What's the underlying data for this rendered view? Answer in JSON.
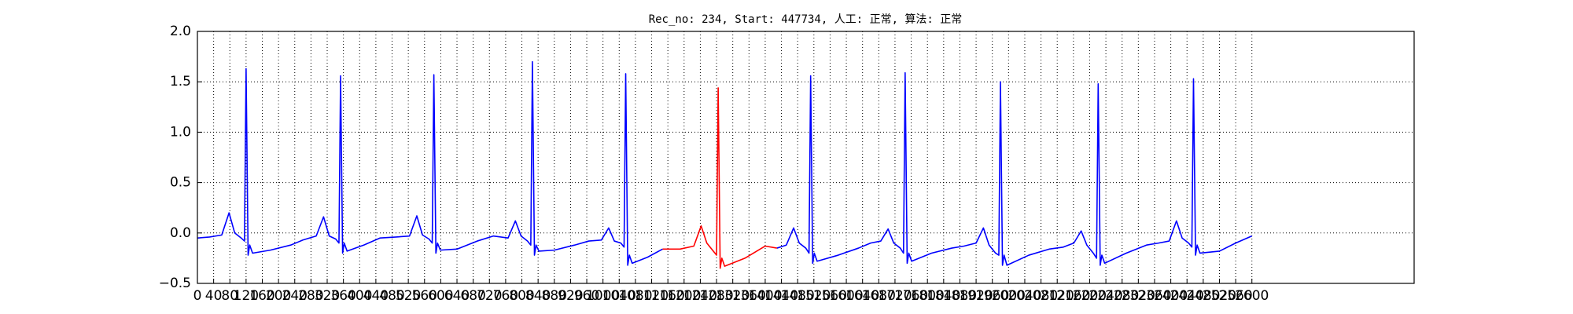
{
  "chart_data": {
    "type": "line",
    "title": "Rec_no: 234, Start: 447734, 人工: 正常, 算法: 正常",
    "xlim": [
      0,
      3000
    ],
    "ylim": [
      -0.5,
      2
    ],
    "grid": true,
    "xticks": [
      0,
      40,
      80,
      120,
      160,
      200,
      240,
      280,
      320,
      360,
      400,
      440,
      480,
      520,
      560,
      600,
      640,
      680,
      720,
      760,
      800,
      840,
      880,
      920,
      960,
      1000,
      1040,
      1080,
      1120,
      1160,
      1200,
      1240,
      1280,
      1320,
      1360,
      1400,
      1440,
      1480,
      1520,
      1560,
      1600,
      1640,
      1680,
      1720,
      1760,
      1800,
      1840,
      1880,
      1920,
      1960,
      2000,
      2040,
      2080,
      2120,
      2160,
      2200,
      2240,
      2280,
      2320,
      2360,
      2400,
      2440,
      2480,
      2520,
      2560,
      2600
    ],
    "yticks": [
      {
        "value": -0.5,
        "label": "−0.5"
      },
      {
        "value": 0,
        "label": "0.0"
      },
      0.5,
      {
        "value": 1,
        "label": "1.0"
      },
      1.5,
      {
        "value": 2,
        "label": "2.0"
      }
    ],
    "series": [
      {
        "color": "#0000ff",
        "x": [
          0,
          30,
          60,
          78,
          92,
          108,
          116,
          120,
          125,
          129,
          136,
          180,
          230,
          260,
          293,
          311,
          325,
          341,
          349,
          353,
          358,
          362,
          369,
          410,
          450,
          490,
          523,
          541,
          555,
          571,
          579,
          583,
          588,
          592,
          599,
          640,
          690,
          730,
          766,
          784,
          798,
          814,
          822,
          826,
          831,
          835,
          842,
          880,
          930,
          965,
          996,
          1014,
          1028,
          1044,
          1052,
          1056,
          1061,
          1065,
          1072,
          1110,
          1147
        ],
        "values": [
          -0.05,
          -0.04,
          -0.02,
          0.2,
          0,
          -0.05,
          -0.08,
          1.63,
          -0.22,
          -0.12,
          -0.2,
          -0.17,
          -0.12,
          -0.07,
          -0.03,
          0.16,
          -0.03,
          -0.06,
          -0.1,
          1.56,
          -0.2,
          -0.1,
          -0.18,
          -0.12,
          -0.05,
          -0.04,
          -0.03,
          0.17,
          -0.02,
          -0.06,
          -0.1,
          1.57,
          -0.2,
          -0.1,
          -0.17,
          -0.16,
          -0.08,
          -0.03,
          -0.05,
          0.12,
          -0.03,
          -0.08,
          -0.12,
          1.7,
          -0.22,
          -0.12,
          -0.18,
          -0.17,
          -0.12,
          -0.08,
          -0.07,
          0.05,
          -0.08,
          -0.1,
          -0.14,
          1.58,
          -0.32,
          -0.22,
          -0.3,
          -0.24,
          -0.16
        ]
      },
      {
        "color": "#ff0000",
        "x": [
          1147,
          1190,
          1224,
          1242,
          1256,
          1272,
          1280,
          1284,
          1289,
          1293,
          1300,
          1350,
          1400,
          1429
        ],
        "values": [
          -0.16,
          -0.16,
          -0.13,
          0.07,
          -0.1,
          -0.18,
          -0.22,
          1.44,
          -0.35,
          -0.25,
          -0.33,
          -0.25,
          -0.13,
          -0.15
        ]
      },
      {
        "color": "#0000ff",
        "x": [
          1429,
          1452,
          1470,
          1484,
          1500,
          1508,
          1512,
          1517,
          1521,
          1528,
          1580,
          1630,
          1660,
          1685,
          1703,
          1717,
          1733,
          1741,
          1745,
          1750,
          1754,
          1761,
          1810,
          1860,
          1890,
          1920,
          1938,
          1952,
          1968,
          1976,
          1980,
          1985,
          1989,
          1996,
          2050,
          2100,
          2135,
          2161,
          2179,
          2193,
          2209,
          2217,
          2221,
          2226,
          2230,
          2237,
          2290,
          2340,
          2370,
          2396,
          2414,
          2428,
          2444,
          2452,
          2456,
          2461,
          2465,
          2472,
          2520,
          2560,
          2600
        ],
        "values": [
          -0.15,
          -0.12,
          0.05,
          -0.1,
          -0.15,
          -0.2,
          1.56,
          -0.3,
          -0.2,
          -0.28,
          -0.22,
          -0.15,
          -0.1,
          -0.08,
          0.04,
          -0.1,
          -0.15,
          -0.2,
          1.59,
          -0.3,
          -0.2,
          -0.28,
          -0.2,
          -0.15,
          -0.13,
          -0.1,
          0.05,
          -0.12,
          -0.2,
          -0.22,
          1.5,
          -0.32,
          -0.22,
          -0.32,
          -0.22,
          -0.16,
          -0.14,
          -0.1,
          0.02,
          -0.12,
          -0.2,
          -0.25,
          1.48,
          -0.32,
          -0.22,
          -0.3,
          -0.2,
          -0.12,
          -0.1,
          -0.08,
          0.12,
          -0.05,
          -0.1,
          -0.14,
          1.53,
          -0.22,
          -0.12,
          -0.2,
          -0.18,
          -0.1,
          -0.03
        ]
      }
    ]
  }
}
